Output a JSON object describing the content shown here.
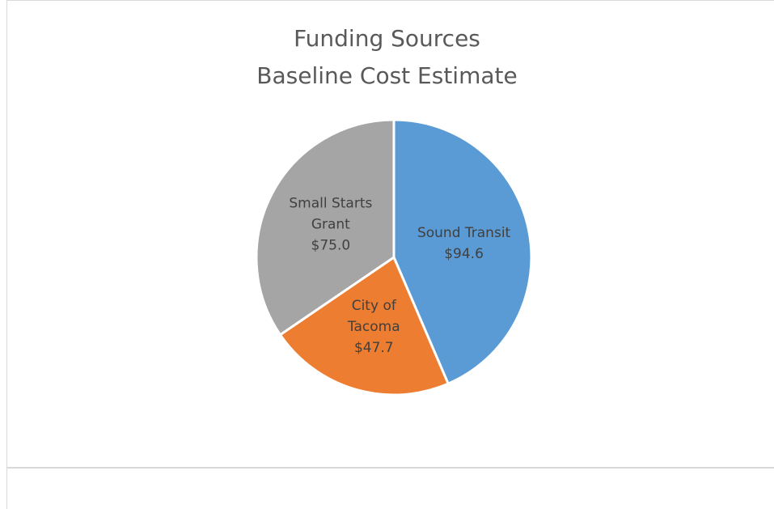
{
  "chart_data": {
    "type": "pie",
    "title": "Funding Sources",
    "subtitle": "Baseline Cost Estimate",
    "slices": [
      {
        "label_lines": [
          "Sound Transit"
        ],
        "value": 94.6,
        "value_label": "$94.6",
        "color": "#5b9bd5"
      },
      {
        "label_lines": [
          "City of",
          "Tacoma"
        ],
        "value": 47.7,
        "value_label": "$47.7",
        "color": "#ed7d31"
      },
      {
        "label_lines": [
          "Small Starts",
          "Grant"
        ],
        "value": 75.0,
        "value_label": "$75.0",
        "color": "#a5a5a5"
      }
    ]
  }
}
